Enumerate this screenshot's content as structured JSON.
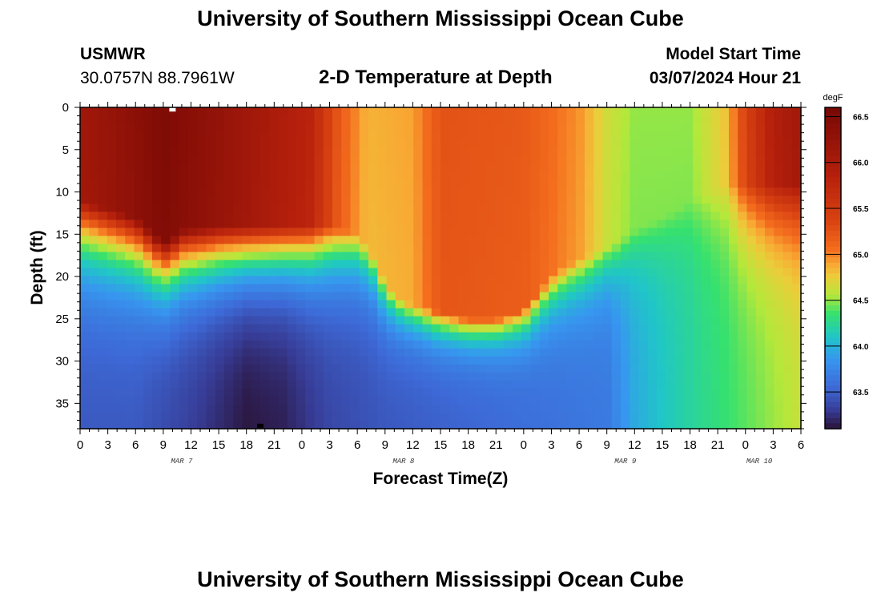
{
  "header": {
    "title": "University of Southern Mississippi Ocean Cube",
    "station": "USMWR",
    "coords": "30.0757N  88.7961W",
    "plot_title": "2-D Temperature at Depth",
    "model_start_label": "Model Start Time",
    "model_start_value": "03/07/2024 Hour 21"
  },
  "footer": {
    "title": "University of Southern Mississippi Ocean Cube"
  },
  "chart_data": {
    "type": "heatmap",
    "title": "2-D Temperature at Depth",
    "xlabel": "Forecast Time(Z)",
    "ylabel": "Depth (ft)",
    "x_range_hours": [
      0,
      78
    ],
    "x_tick_labels": [
      "0",
      "3",
      "6",
      "9",
      "12",
      "15",
      "18",
      "21",
      "0",
      "3",
      "6",
      "9",
      "12",
      "15",
      "18",
      "21",
      "0",
      "3",
      "6",
      "9",
      "12",
      "15",
      "18",
      "21",
      "0",
      "3",
      "6"
    ],
    "date_labels": [
      {
        "label": "MAR 7",
        "hour": 11
      },
      {
        "label": "MAR 8",
        "hour": 35
      },
      {
        "label": "MAR 9",
        "hour": 59
      },
      {
        "label": "MAR 10",
        "hour": 73.5
      }
    ],
    "y_range_ft": [
      0,
      38
    ],
    "y_ticks": [
      0,
      5,
      10,
      15,
      20,
      25,
      30,
      35
    ],
    "colorbar": {
      "unit": "degF",
      "min": 63.1,
      "max": 66.6,
      "ticks": [
        63.5,
        64.0,
        64.5,
        65.0,
        65.5,
        66.0,
        66.5
      ],
      "tick_labels": [
        "63.5",
        "64.0",
        "64.5",
        "65.0",
        "65.5",
        "66.0",
        "66.5"
      ]
    },
    "markers": [
      {
        "name": "max-marker",
        "hour": 10,
        "depth": 0.3,
        "color": "#ffffff"
      },
      {
        "name": "min-marker",
        "hour": 19.5,
        "depth": 37.7,
        "color": "#000000"
      }
    ],
    "surface_temp_degF": [
      {
        "hour": 0,
        "temp": 66.1
      },
      {
        "hour": 5,
        "temp": 66.3
      },
      {
        "hour": 9,
        "temp": 66.5
      },
      {
        "hour": 14,
        "temp": 66.3
      },
      {
        "hour": 25,
        "temp": 65.8
      },
      {
        "hour": 28,
        "temp": 65.2
      },
      {
        "hour": 31,
        "temp": 64.85
      },
      {
        "hour": 36,
        "temp": 64.9
      },
      {
        "hour": 39,
        "temp": 65.25
      },
      {
        "hour": 48,
        "temp": 65.2
      },
      {
        "hour": 54,
        "temp": 64.95
      },
      {
        "hour": 57,
        "temp": 64.65
      },
      {
        "hour": 60,
        "temp": 64.5
      },
      {
        "hour": 66,
        "temp": 64.5
      },
      {
        "hour": 70,
        "temp": 64.8
      },
      {
        "hour": 72,
        "temp": 65.4
      },
      {
        "hour": 75,
        "temp": 65.9
      },
      {
        "hour": 78,
        "temp": 66.1
      }
    ],
    "mixed_layer_depth_ft": [
      {
        "hour": 0,
        "depth": 11
      },
      {
        "hour": 3,
        "depth": 12
      },
      {
        "hour": 6,
        "depth": 13
      },
      {
        "hour": 8,
        "depth": 15
      },
      {
        "hour": 9,
        "depth": 16
      },
      {
        "hour": 10,
        "depth": 15.5
      },
      {
        "hour": 11,
        "depth": 14.5
      },
      {
        "hour": 15,
        "depth": 14
      },
      {
        "hour": 21,
        "depth": 14
      },
      {
        "hour": 27,
        "depth": 14
      },
      {
        "hour": 30,
        "depth": 15
      },
      {
        "hour": 32,
        "depth": 18
      },
      {
        "hour": 33,
        "depth": 21
      },
      {
        "hour": 35,
        "depth": 23
      },
      {
        "hour": 38,
        "depth": 24
      },
      {
        "hour": 42,
        "depth": 25
      },
      {
        "hour": 45,
        "depth": 25
      },
      {
        "hour": 48,
        "depth": 24
      },
      {
        "hour": 51,
        "depth": 20
      },
      {
        "hour": 53,
        "depth": 18.5
      },
      {
        "hour": 56,
        "depth": 17
      },
      {
        "hour": 58,
        "depth": 16
      },
      {
        "hour": 60,
        "depth": 14.5
      },
      {
        "hour": 63,
        "depth": 13
      },
      {
        "hour": 66,
        "depth": 11
      },
      {
        "hour": 70,
        "depth": 9
      },
      {
        "hour": 74,
        "depth": 9
      },
      {
        "hour": 78,
        "depth": 9
      }
    ],
    "bottom_temp_degF": [
      {
        "hour": 0,
        "temp": 63.45
      },
      {
        "hour": 6,
        "temp": 63.45
      },
      {
        "hour": 12,
        "temp": 63.3
      },
      {
        "hour": 18,
        "temp": 63.1
      },
      {
        "hour": 22,
        "temp": 63.15
      },
      {
        "hour": 27,
        "temp": 63.35
      },
      {
        "hour": 33,
        "temp": 63.45
      },
      {
        "hour": 39,
        "temp": 63.5
      },
      {
        "hour": 45,
        "temp": 63.55
      },
      {
        "hour": 51,
        "temp": 63.6
      },
      {
        "hour": 57,
        "temp": 63.65
      },
      {
        "hour": 60,
        "temp": 63.95
      },
      {
        "hour": 63,
        "temp": 64.1
      },
      {
        "hour": 67,
        "temp": 64.25
      },
      {
        "hour": 72,
        "temp": 64.4
      },
      {
        "hour": 78,
        "temp": 64.6
      }
    ]
  }
}
